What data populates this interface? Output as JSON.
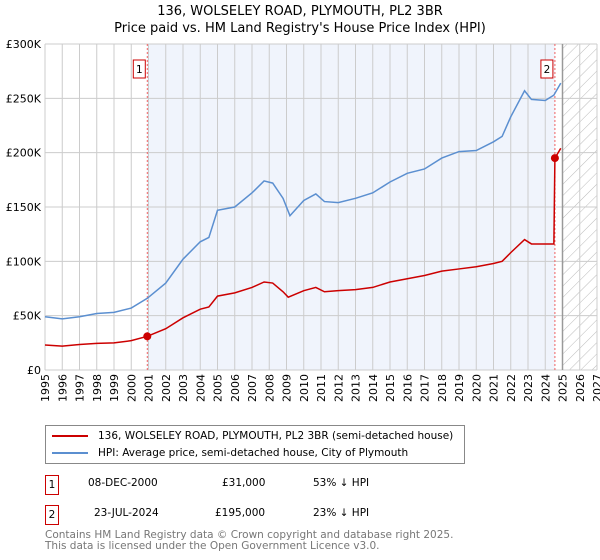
{
  "chart_data": {
    "type": "line",
    "title": "136, WOLSELEY ROAD, PLYMOUTH, PL2 3BR",
    "subtitle": "Price paid vs. HM Land Registry's House Price Index (HPI)",
    "xlim": [
      1995,
      2027
    ],
    "ylim": [
      0,
      300000
    ],
    "xticks": [
      "1995",
      "1996",
      "1997",
      "1998",
      "1999",
      "2000",
      "2001",
      "2002",
      "2003",
      "2004",
      "2005",
      "2006",
      "2007",
      "2008",
      "2009",
      "2010",
      "2011",
      "2012",
      "2013",
      "2014",
      "2015",
      "2016",
      "2017",
      "2018",
      "2019",
      "2020",
      "2021",
      "2022",
      "2023",
      "2024",
      "2025",
      "2026",
      "2027"
    ],
    "yticks": [
      {
        "v": 0,
        "label": "£0"
      },
      {
        "v": 50000,
        "label": "£50K"
      },
      {
        "v": 100000,
        "label": "£100K"
      },
      {
        "v": 150000,
        "label": "£150K"
      },
      {
        "v": 200000,
        "label": "£200K"
      },
      {
        "v": 250000,
        "label": "£250K"
      },
      {
        "v": 300000,
        "label": "£300K"
      }
    ],
    "grid": true,
    "shaded_range": [
      2000.93,
      2024.56
    ],
    "forecast_hatch_from": 2025.0,
    "series": [
      {
        "name": "136, WOLSELEY ROAD, PLYMOUTH, PL2 3BR (semi-detached house)",
        "color": "#cc0000",
        "x": [
          1995,
          1996,
          1997,
          1998,
          1999,
          2000,
          2000.93,
          2002,
          2003,
          2004,
          2004.5,
          2005,
          2006,
          2007,
          2007.7,
          2008.2,
          2008.8,
          2009.1,
          2010,
          2010.7,
          2011.2,
          2012,
          2013,
          2014,
          2015,
          2016,
          2017,
          2018,
          2019,
          2020,
          2021,
          2021.5,
          2022,
          2022.8,
          2023.2,
          2024.5,
          2024.56,
          2024.9
        ],
        "y": [
          23000,
          22000,
          23500,
          24500,
          25000,
          27000,
          31000,
          38000,
          48000,
          56000,
          58000,
          68000,
          71000,
          76000,
          81000,
          80000,
          72000,
          67000,
          73000,
          76000,
          72000,
          73000,
          74000,
          76000,
          81000,
          84000,
          87000,
          91000,
          93000,
          95000,
          98000,
          100000,
          108000,
          120000,
          116000,
          116000,
          195000,
          204000
        ]
      },
      {
        "name": "HPI: Average price, semi-detached house, City of Plymouth",
        "color": "#5b8fd0",
        "x": [
          1995,
          1996,
          1997,
          1998,
          1999,
          2000,
          2000.93,
          2002,
          2003,
          2004,
          2004.5,
          2005,
          2006,
          2007,
          2007.7,
          2008.2,
          2008.8,
          2009.2,
          2010,
          2010.7,
          2011.2,
          2012,
          2013,
          2014,
          2015,
          2016,
          2017,
          2018,
          2019,
          2020,
          2021,
          2021.5,
          2022,
          2022.8,
          2023.2,
          2024,
          2024.5,
          2024.9
        ],
        "y": [
          49000,
          47000,
          49000,
          52000,
          53000,
          57000,
          66000,
          80000,
          102000,
          118000,
          122000,
          147000,
          150000,
          163000,
          174000,
          172000,
          158000,
          142000,
          156000,
          162000,
          155000,
          154000,
          158000,
          163000,
          173000,
          181000,
          185000,
          195000,
          201000,
          202000,
          210000,
          215000,
          233000,
          257000,
          249000,
          248000,
          253000,
          264000
        ]
      }
    ],
    "sales": [
      {
        "id": "1",
        "x": 2000.93,
        "y": 31000,
        "date": "08-DEC-2000",
        "price": "£31,000",
        "hpi": "53% ↓ HPI"
      },
      {
        "id": "2",
        "x": 2024.56,
        "y": 195000,
        "date": "23-JUL-2024",
        "price": "£195,000",
        "hpi": "23% ↓ HPI"
      }
    ]
  },
  "footer": {
    "line1": "Contains HM Land Registry data © Crown copyright and database right 2025.",
    "line2": "This data is licensed under the Open Government Licence v3.0."
  }
}
